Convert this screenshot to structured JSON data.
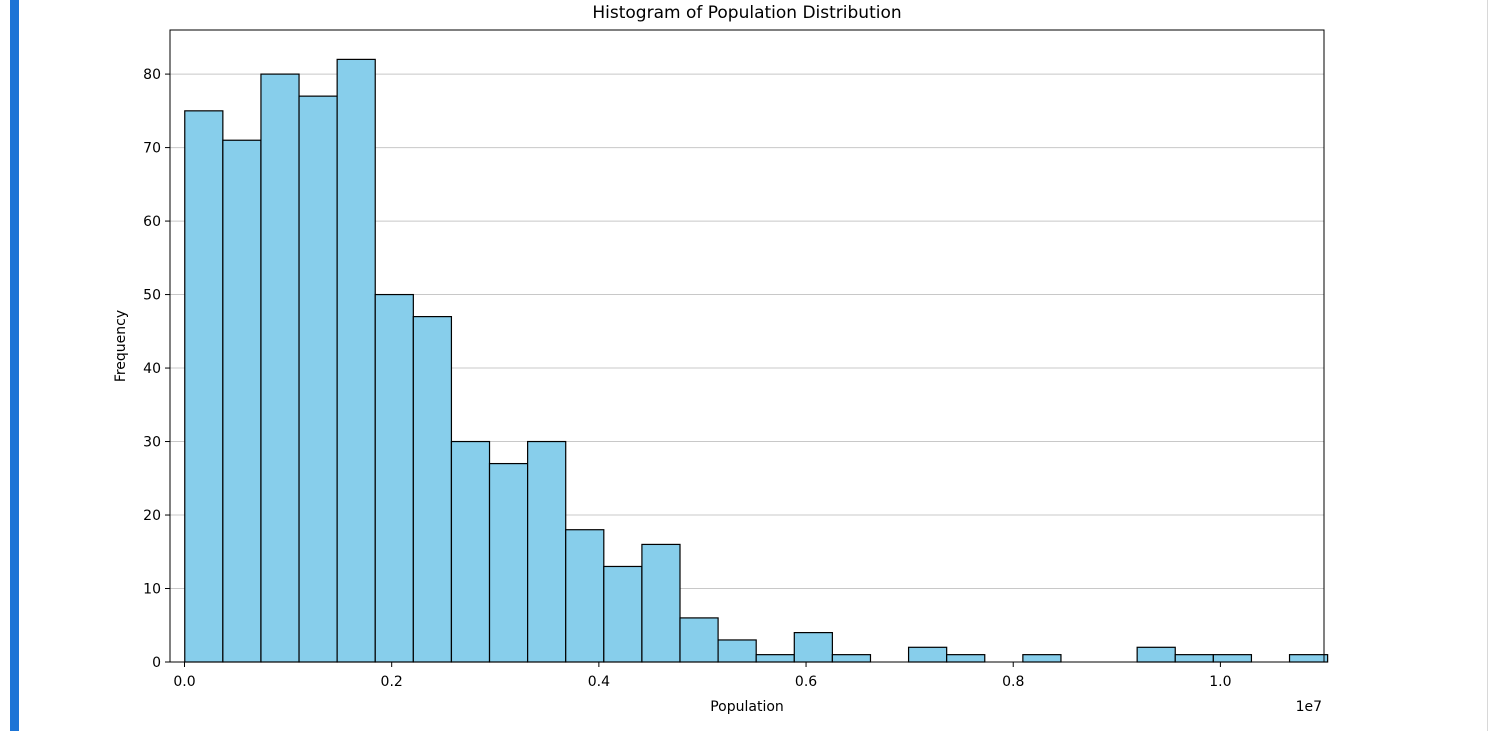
{
  "colors": {
    "accent_bar": "#1c74d6",
    "right_border": "#d8d8d8",
    "bar_fill": "#87ceeb",
    "bar_edge": "#000000",
    "grid": "#c8c8c8"
  },
  "chart_data": {
    "type": "bar",
    "title": "Histogram of Population Distribution",
    "xlabel": "Population",
    "ylabel": "Frequency",
    "x_offset_label": "1e7",
    "x_scale_exponent": 7,
    "xlim": [
      -0.014,
      1.1
    ],
    "ylim": [
      0,
      86
    ],
    "x_ticks": [
      0.0,
      0.2,
      0.4,
      0.6,
      0.8,
      1.0
    ],
    "x_tick_labels": [
      "0.0",
      "0.2",
      "0.4",
      "0.6",
      "0.8",
      "1.0"
    ],
    "y_ticks": [
      0,
      10,
      20,
      30,
      40,
      50,
      60,
      70,
      80
    ],
    "y_tick_labels": [
      "0",
      "10",
      "20",
      "30",
      "40",
      "50",
      "60",
      "70",
      "80"
    ],
    "grid": "y-only",
    "legend": "none",
    "bin_start": 0.00025,
    "bin_end": 1.1035,
    "values": [
      75,
      71,
      80,
      77,
      82,
      50,
      47,
      30,
      27,
      30,
      18,
      13,
      16,
      6,
      3,
      1,
      4,
      1,
      0,
      2,
      1,
      0,
      1,
      0,
      0,
      2,
      1,
      1,
      0,
      1
    ]
  }
}
